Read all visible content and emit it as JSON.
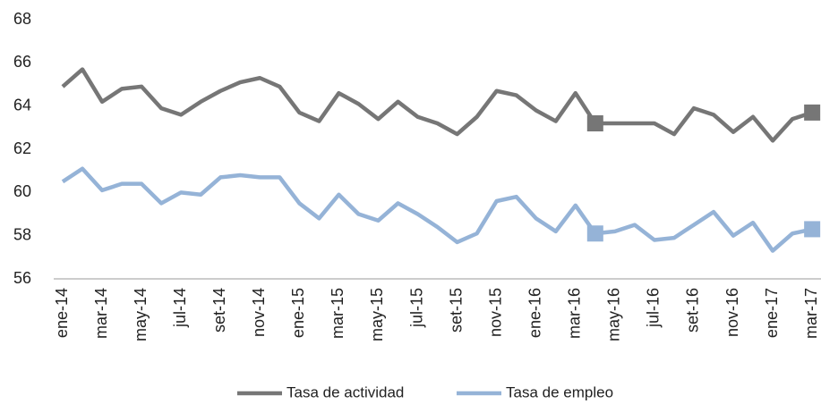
{
  "chart_data": {
    "type": "line",
    "categories": [
      "ene-14",
      null,
      "mar-14",
      null,
      "may-14",
      null,
      "jul-14",
      null,
      "set-14",
      null,
      "nov-14",
      null,
      "ene-15",
      null,
      "mar-15",
      null,
      "may-15",
      null,
      "jul-15",
      null,
      "set-15",
      null,
      "nov-15",
      null,
      "ene-16",
      null,
      "mar-16",
      null,
      "may-16",
      null,
      "jul-16",
      null,
      "set-16",
      null,
      "nov-16",
      null,
      "ene-17",
      null,
      "mar-17"
    ],
    "series": [
      {
        "name": "Tasa de actividad",
        "color": "#767676",
        "markers": [
          27,
          38
        ],
        "values": [
          64.9,
          65.7,
          64.2,
          64.8,
          64.9,
          63.9,
          63.6,
          64.2,
          64.7,
          65.1,
          65.3,
          64.9,
          63.7,
          63.3,
          64.6,
          64.1,
          63.4,
          64.2,
          63.5,
          63.2,
          62.7,
          63.5,
          64.7,
          64.5,
          63.8,
          63.3,
          64.6,
          63.2,
          63.2,
          63.2,
          63.2,
          62.7,
          63.9,
          63.6,
          62.8,
          63.5,
          62.4,
          63.4,
          63.7
        ]
      },
      {
        "name": "Tasa de empleo",
        "color": "#95b3d7",
        "markers": [
          27,
          38
        ],
        "values": [
          60.5,
          61.1,
          60.1,
          60.4,
          60.4,
          59.5,
          60.0,
          59.9,
          60.7,
          60.8,
          60.7,
          60.7,
          59.5,
          58.8,
          59.9,
          59.0,
          58.7,
          59.5,
          59.0,
          58.4,
          57.7,
          58.1,
          59.6,
          59.8,
          58.8,
          58.2,
          59.4,
          58.1,
          58.2,
          58.5,
          57.8,
          57.9,
          58.5,
          59.1,
          58.0,
          58.6,
          57.3,
          58.1,
          58.3
        ]
      }
    ],
    "ylim": [
      56,
      68
    ],
    "yticks": [
      56,
      58,
      60,
      62,
      64,
      66,
      68
    ],
    "legend": "bottom"
  }
}
